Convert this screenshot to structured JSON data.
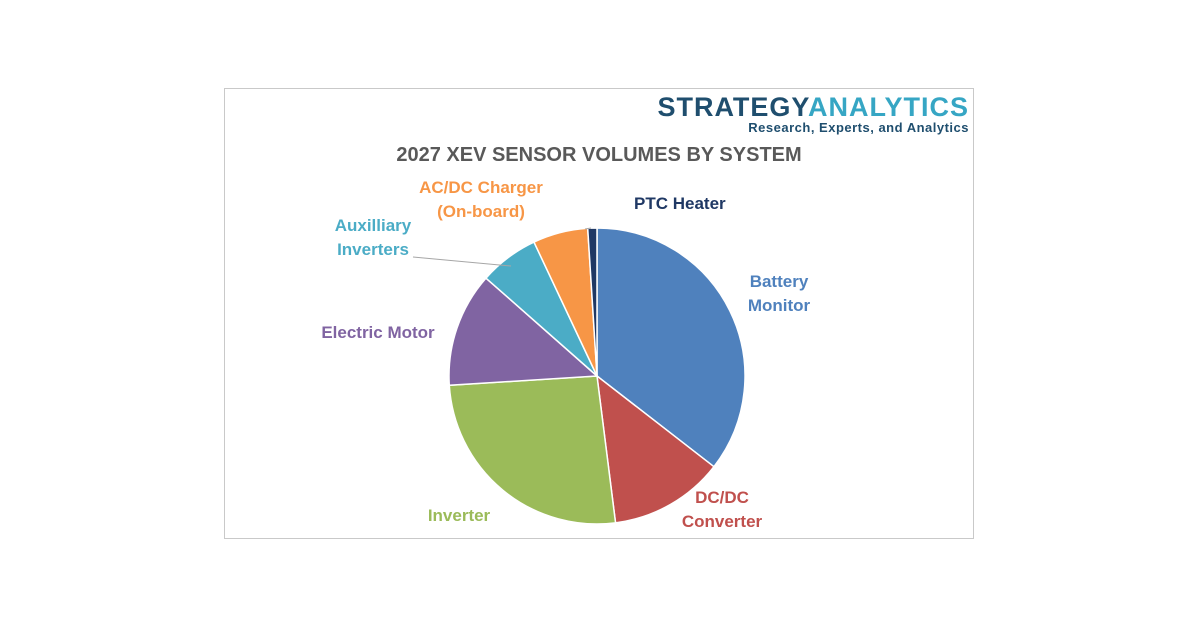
{
  "brand": {
    "name_part1": "STRATEGY",
    "name_part2": "ANALYTICS",
    "tagline": "Research, Experts, and Analytics"
  },
  "chart_data": {
    "type": "pie",
    "title": "2027 XEV SENSOR VOLUMES BY SYSTEM",
    "start_angle_deg": 0,
    "direction": "clockwise",
    "legend": "none",
    "slices": [
      {
        "label": "Battery Monitor",
        "value": 35.5,
        "color": "#4f81bd"
      },
      {
        "label": "DC/DC Converter",
        "value": 12.5,
        "color": "#c0504d"
      },
      {
        "label": "Inverter",
        "value": 26.0,
        "color": "#9bbb59"
      },
      {
        "label": "Electric Motor",
        "value": 12.5,
        "color": "#8064a2"
      },
      {
        "label": "Auxilliary Inverters",
        "value": 6.5,
        "color": "#4bacc6"
      },
      {
        "label": "AC/DC Charger (On-board)",
        "value": 6.0,
        "color": "#f79646"
      },
      {
        "label": "PTC Heater",
        "value": 1.0,
        "color": "#1f3864"
      }
    ]
  }
}
